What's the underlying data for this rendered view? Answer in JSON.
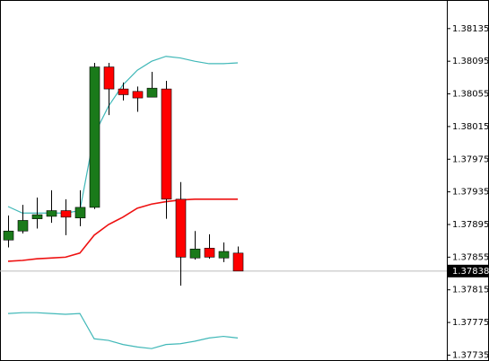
{
  "chart_data": {
    "type": "candlestick",
    "open": [
      1.37876,
      1.37887,
      1.37902,
      1.37905,
      1.37912,
      1.37903,
      1.37916,
      1.38088,
      1.38061,
      1.38058,
      1.38051,
      1.38061,
      1.37926,
      1.37854,
      1.37866,
      1.37854,
      1.3786
    ],
    "high": [
      1.37906,
      1.37919,
      1.37928,
      1.37937,
      1.37926,
      1.37937,
      1.38093,
      1.38093,
      1.38069,
      1.38064,
      1.38082,
      1.38071,
      1.37947,
      1.37887,
      1.37883,
      1.37873,
      1.37868
    ],
    "low": [
      1.37867,
      1.37884,
      1.3789,
      1.37897,
      1.37882,
      1.37893,
      1.37914,
      1.38029,
      1.38047,
      1.38033,
      1.38051,
      1.37902,
      1.3782,
      1.37852,
      1.37853,
      1.37849,
      1.37838
    ],
    "close": [
      1.37887,
      1.379,
      1.37907,
      1.37912,
      1.37904,
      1.37916,
      1.38088,
      1.38061,
      1.38054,
      1.3805,
      1.38062,
      1.37926,
      1.37855,
      1.37865,
      1.37855,
      1.37862,
      1.37838
    ],
    "up_color": "#1a7a1a",
    "down_color": "#ff0000",
    "bands": [
      {
        "color": "#40b8b8",
        "values": [
          1.37917,
          1.37909,
          1.37909,
          1.37909,
          1.37909,
          1.37912,
          1.38005,
          1.3804,
          1.38066,
          1.38084,
          1.38095,
          1.38101,
          1.38099,
          1.38095,
          1.38092,
          1.38092,
          1.38093
        ]
      },
      {
        "color": "#ee1111",
        "values": [
          1.3785,
          1.37851,
          1.37853,
          1.37854,
          1.37855,
          1.3786,
          1.37882,
          1.37895,
          1.37904,
          1.37915,
          1.3792,
          1.37923,
          1.37925,
          1.37926,
          1.37926,
          1.37926,
          1.37926
        ]
      },
      {
        "color": "#40b8b8",
        "values": [
          1.37786,
          1.37787,
          1.37787,
          1.37786,
          1.37785,
          1.37786,
          1.37755,
          1.37753,
          1.37748,
          1.37745,
          1.37743,
          1.37748,
          1.37749,
          1.37752,
          1.37756,
          1.37758,
          1.37756
        ]
      }
    ],
    "current_price": 1.37838,
    "ylim": [
      1.3773,
      1.3817
    ],
    "yticks": [
      1.37735,
      1.37775,
      1.37815,
      1.37855,
      1.37895,
      1.37935,
      1.37975,
      1.38015,
      1.38055,
      1.38095,
      1.38135
    ]
  }
}
